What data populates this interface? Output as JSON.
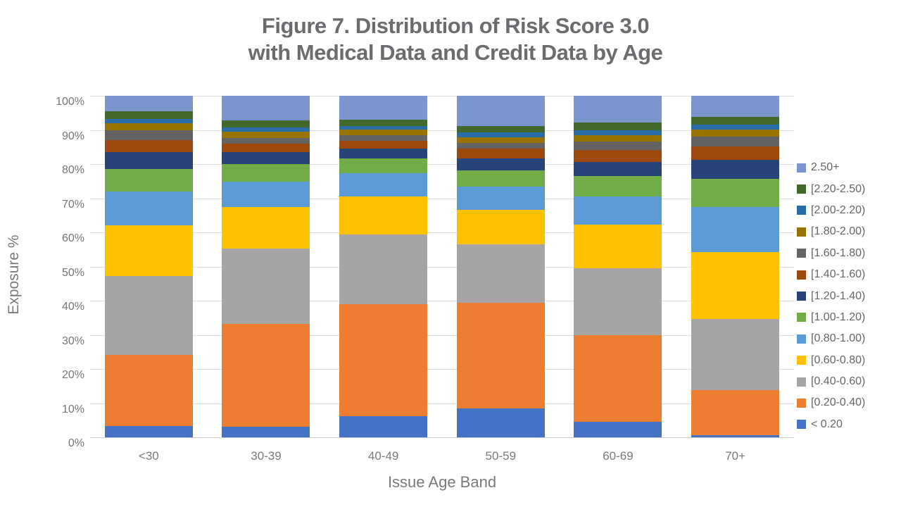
{
  "title": {
    "line1": "Figure 7. Distribution of Risk Score 3.0",
    "line2": "with Medical Data and Credit Data by Age"
  },
  "chart_data": {
    "type": "bar",
    "stacked": true,
    "title": "Figure 7. Distribution of Risk Score 3.0 with Medical Data and Credit Data by Age",
    "xlabel": "Issue Age Band",
    "ylabel": "Exposure %",
    "ylim": [
      0,
      100
    ],
    "grid": true,
    "legend_position": "right",
    "y_ticks": [
      "0%",
      "10%",
      "20%",
      "30%",
      "40%",
      "50%",
      "60%",
      "70%",
      "80%",
      "90%",
      "100%"
    ],
    "categories": [
      "<30",
      "30-39",
      "40-49",
      "50-59",
      "60-69",
      "70+"
    ],
    "series": [
      {
        "name": "< 0.20",
        "color": "#4472C4",
        "values": [
          3.3,
          3.0,
          6.1,
          8.5,
          4.6,
          0.7
        ]
      },
      {
        "name": "[0.20-0.40)",
        "color": "#ED7D31",
        "values": [
          20.8,
          30.3,
          32.9,
          30.8,
          25.4,
          13.2
        ]
      },
      {
        "name": "[0.40-0.60)",
        "color": "#A5A5A5",
        "values": [
          23.1,
          22.0,
          20.3,
          17.2,
          19.5,
          20.7
        ]
      },
      {
        "name": "[0.60-0.80)",
        "color": "#FFC000",
        "values": [
          14.8,
          12.2,
          11.3,
          10.1,
          12.7,
          19.7
        ]
      },
      {
        "name": "[0.80-1.00)",
        "color": "#5B9BD5",
        "values": [
          10.0,
          7.3,
          6.7,
          6.8,
          8.4,
          13.2
        ]
      },
      {
        "name": "[1.00-1.20)",
        "color": "#70AD47",
        "values": [
          6.5,
          5.2,
          4.3,
          4.7,
          5.9,
          8.2
        ]
      },
      {
        "name": "[1.20-1.40)",
        "color": "#264478",
        "values": [
          5.1,
          3.5,
          3.0,
          3.5,
          4.2,
          5.6
        ]
      },
      {
        "name": "[1.40-1.60)",
        "color": "#9E480E",
        "values": [
          3.4,
          2.5,
          2.2,
          2.9,
          3.5,
          3.8
        ]
      },
      {
        "name": "[1.60-1.80)",
        "color": "#636363",
        "values": [
          2.9,
          1.7,
          1.7,
          1.7,
          2.5,
          2.9
        ]
      },
      {
        "name": "[1.80-2.00)",
        "color": "#987300",
        "values": [
          2.1,
          1.7,
          1.6,
          1.6,
          1.8,
          2.1
        ]
      },
      {
        "name": "[2.00-2.20)",
        "color": "#2A6CA8",
        "values": [
          1.3,
          1.4,
          1.0,
          1.4,
          1.4,
          1.5
        ]
      },
      {
        "name": "[2.20-2.50)",
        "color": "#43682B",
        "values": [
          2.2,
          2.0,
          2.0,
          1.9,
          2.2,
          2.2
        ]
      },
      {
        "name": "2.50+",
        "color": "#7B96CE",
        "values": [
          4.5,
          7.2,
          6.9,
          8.9,
          7.9,
          6.2
        ]
      }
    ]
  }
}
